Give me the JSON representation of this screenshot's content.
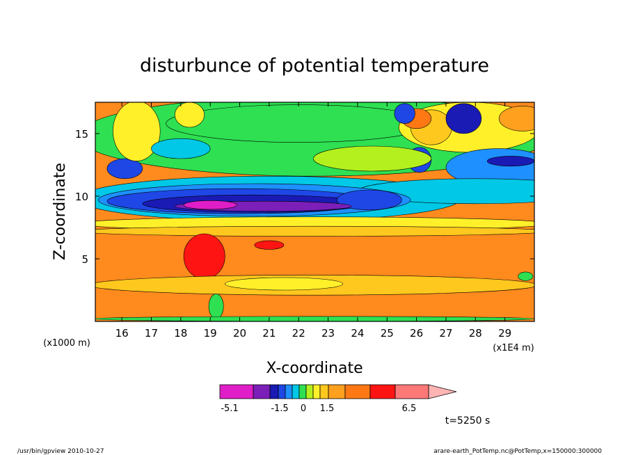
{
  "chart_data": {
    "type": "heatmap",
    "title": "disturbunce of potential temperature",
    "xlabel": "X-coordinate",
    "ylabel": "Z-coordinate",
    "x_unit_left": "(x1000 m)",
    "x_unit_right": "(x1E4 m)",
    "xlim": [
      15.1,
      30.0
    ],
    "ylim": [
      0,
      17.5
    ],
    "x_ticks": [
      16,
      17,
      18,
      19,
      20,
      21,
      22,
      23,
      24,
      25,
      26,
      27,
      28,
      29
    ],
    "y_ticks": [
      5,
      10,
      15
    ],
    "colorbar": {
      "colors": [
        "#e01ec8",
        "#7b1fb8",
        "#1a1ab4",
        "#1f47e6",
        "#1e90ff",
        "#00c8e6",
        "#2ee052",
        "#b4f01e",
        "#fff02a",
        "#ffc81e",
        "#ffa01e",
        "#ff7814",
        "#ff1414",
        "#ff7878",
        "#ffb4b4"
      ],
      "tick_labels": [
        "-5.1",
        "-1.5",
        "0",
        "1.5",
        "6.5"
      ]
    },
    "time_label": "t=5250 s",
    "field": {
      "background": "#ff8a1e",
      "regions": [
        {
          "x": 22.5,
          "z": 14.8,
          "rx": 8.0,
          "rz": 3.2,
          "level": 0.3,
          "color": "#2ee052"
        },
        {
          "x": 22.0,
          "z": 15.8,
          "rx": 4.5,
          "rz": 1.5,
          "level": 0.1,
          "color": "#2ee052"
        },
        {
          "x": 27.8,
          "z": 15.5,
          "rx": 2.4,
          "rz": 2.0,
          "level": 0.8,
          "color": "#fff02a"
        },
        {
          "x": 26.5,
          "z": 15.5,
          "rx": 0.7,
          "rz": 1.4,
          "level": 1.2,
          "color": "#ffc81e"
        },
        {
          "x": 26.0,
          "z": 16.2,
          "rx": 0.5,
          "rz": 0.8,
          "level": 2.0,
          "color": "#ff7814"
        },
        {
          "x": 25.6,
          "z": 16.6,
          "rx": 0.35,
          "rz": 0.8,
          "level": -2.0,
          "color": "#1f47e6"
        },
        {
          "x": 27.6,
          "z": 16.2,
          "rx": 0.6,
          "rz": 1.2,
          "level": -2.6,
          "color": "#1a1ab4"
        },
        {
          "x": 29.6,
          "z": 16.2,
          "rx": 0.8,
          "rz": 1.0,
          "level": 1.8,
          "color": "#ffa01e"
        },
        {
          "x": 28.8,
          "z": 12.3,
          "rx": 1.8,
          "rz": 1.5,
          "level": -1.0,
          "color": "#1e90ff"
        },
        {
          "x": 29.2,
          "z": 12.8,
          "rx": 0.8,
          "rz": 0.4,
          "level": -3.0,
          "color": "#1a1ab4"
        },
        {
          "x": 26.1,
          "z": 12.9,
          "rx": 0.4,
          "rz": 1.0,
          "level": -2.0,
          "color": "#1f47e6"
        },
        {
          "x": 24.5,
          "z": 13.0,
          "rx": 2.0,
          "rz": 1.0,
          "level": 0.6,
          "color": "#b4f01e"
        },
        {
          "x": 16.1,
          "z": 12.2,
          "rx": 0.6,
          "rz": 0.8,
          "level": -2.0,
          "color": "#1f47e6"
        },
        {
          "x": 16.5,
          "z": 15.2,
          "rx": 0.8,
          "rz": 2.4,
          "level": 0.8,
          "color": "#fff02a"
        },
        {
          "x": 18.0,
          "z": 13.8,
          "rx": 1.0,
          "rz": 0.8,
          "level": -0.6,
          "color": "#00c8e6"
        },
        {
          "x": 18.3,
          "z": 16.5,
          "rx": 0.5,
          "rz": 1.0,
          "level": 0.8,
          "color": "#fff02a"
        },
        {
          "x": 21.0,
          "z": 9.8,
          "rx": 6.5,
          "rz": 1.8,
          "level": -0.8,
          "color": "#00c8e6"
        },
        {
          "x": 28.0,
          "z": 10.4,
          "rx": 4.0,
          "rz": 1.0,
          "level": -0.4,
          "color": "#00c8e6"
        },
        {
          "x": 20.5,
          "z": 9.7,
          "rx": 5.3,
          "rz": 1.3,
          "level": -1.8,
          "color": "#1e90ff"
        },
        {
          "x": 20.0,
          "z": 9.6,
          "rx": 4.5,
          "rz": 1.0,
          "level": -2.4,
          "color": "#1f47e6"
        },
        {
          "x": 20.5,
          "z": 9.4,
          "rx": 3.8,
          "rz": 0.7,
          "level": -3.0,
          "color": "#1a1ab4"
        },
        {
          "x": 24.4,
          "z": 9.7,
          "rx": 1.1,
          "rz": 0.8,
          "level": -2.4,
          "color": "#1f47e6"
        },
        {
          "x": 20.8,
          "z": 9.2,
          "rx": 3.0,
          "rz": 0.4,
          "level": -4.0,
          "color": "#7b1fb8"
        },
        {
          "x": 19.0,
          "z": 9.3,
          "rx": 0.9,
          "rz": 0.35,
          "level": -5.1,
          "color": "#e01ec8"
        },
        {
          "x": 22.5,
          "z": 7.8,
          "rx": 8.0,
          "rz": 0.55,
          "level": 0.7,
          "color": "#fff02a"
        },
        {
          "x": 22.5,
          "z": 7.2,
          "rx": 8.0,
          "rz": 0.4,
          "level": 1.2,
          "color": "#ffc81e"
        },
        {
          "x": 18.8,
          "z": 5.2,
          "rx": 0.7,
          "rz": 1.8,
          "level": 3.2,
          "color": "#ff1414"
        },
        {
          "x": 21.0,
          "z": 6.1,
          "rx": 0.5,
          "rz": 0.35,
          "level": 3.0,
          "color": "#ff1414"
        },
        {
          "x": 22.5,
          "z": 2.9,
          "rx": 7.6,
          "rz": 0.8,
          "level": 1.0,
          "color": "#ffc81e"
        },
        {
          "x": 21.5,
          "z": 3.0,
          "rx": 2.0,
          "rz": 0.5,
          "level": 0.6,
          "color": "#fff02a"
        },
        {
          "x": 29.7,
          "z": 3.6,
          "rx": 0.25,
          "rz": 0.35,
          "level": -0.3,
          "color": "#2ee052"
        },
        {
          "x": 19.2,
          "z": 1.2,
          "rx": 0.25,
          "rz": 1.0,
          "level": 0.4,
          "color": "#2ee052"
        },
        {
          "x": 22.5,
          "z": 0.2,
          "rx": 7.5,
          "rz": 0.2,
          "level": -0.2,
          "color": "#2ee052"
        }
      ]
    }
  },
  "footer": {
    "left": "/usr/bin/gpview  2010-10-27",
    "right": "arare-earth_PotTemp.nc@PotTemp,x=150000:300000"
  }
}
